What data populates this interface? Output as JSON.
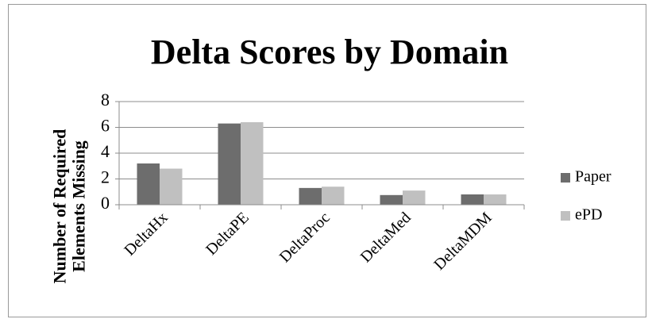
{
  "chart_data": {
    "type": "bar",
    "title": "Delta Scores by Domain",
    "ylabel": "Number of Required Elements Missing",
    "categories": [
      "DeltaHx",
      "DeltaPE",
      "DeltaProc",
      "DeltaMed",
      "DeltaMDM"
    ],
    "series": [
      {
        "name": "Paper",
        "color": "#6d6d6d",
        "values": [
          3.2,
          6.3,
          1.3,
          0.75,
          0.8
        ]
      },
      {
        "name": "ePD",
        "color": "#c0c0c0",
        "values": [
          2.8,
          6.4,
          1.4,
          1.1,
          0.8
        ]
      }
    ],
    "ylim": [
      0,
      8
    ],
    "yticks": [
      0,
      2,
      4,
      6,
      8
    ],
    "grid": true,
    "legend": "right"
  }
}
